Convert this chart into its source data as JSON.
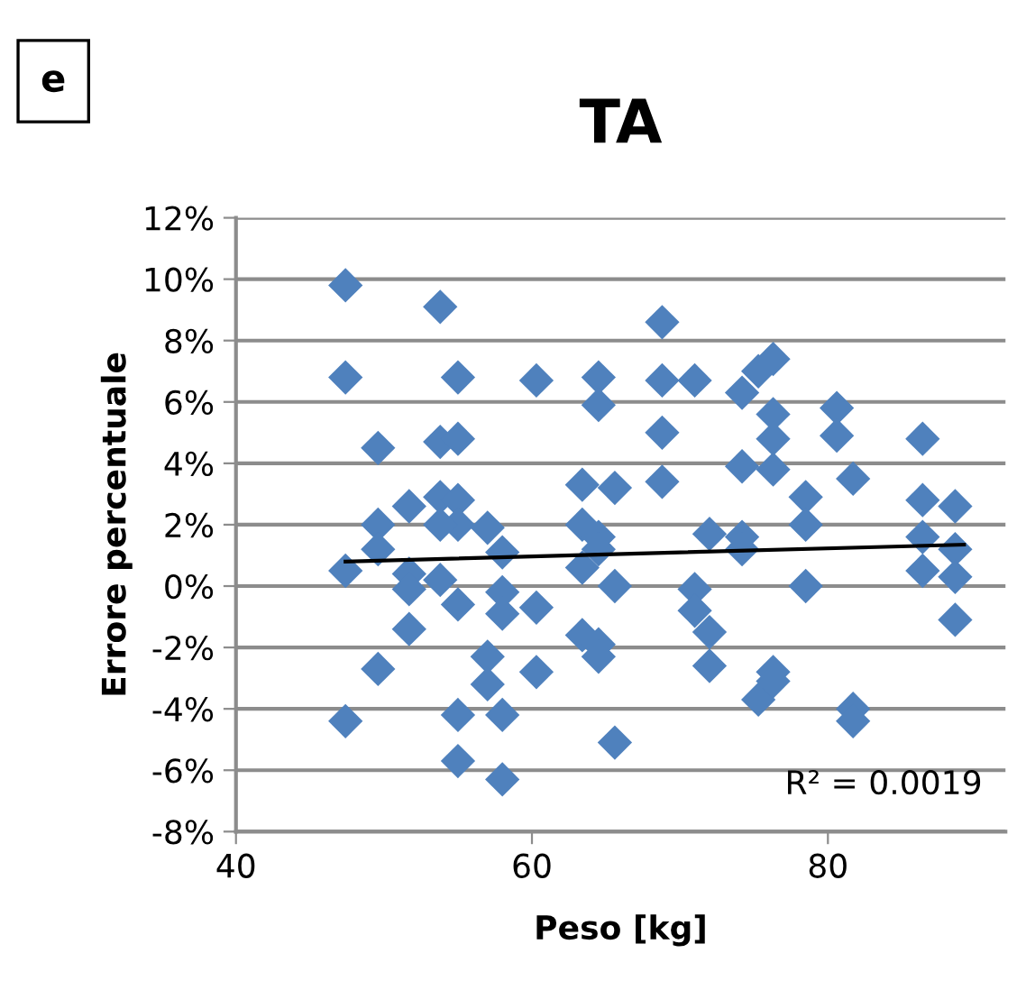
{
  "chart_data": {
    "type": "scatter",
    "title": "TA",
    "xlabel": "Peso [kg]",
    "ylabel": "Errore percentuale",
    "annotations": [
      "e",
      "R² = 0.0019"
    ],
    "xlim": [
      40,
      92
    ],
    "xticks": [
      40,
      60,
      80
    ],
    "ylim": [
      -8,
      12
    ],
    "yticks": [
      {
        "value": -8,
        "label": "-8%"
      },
      {
        "value": -6,
        "label": "-6%"
      },
      {
        "value": -4,
        "label": "-4%"
      },
      {
        "value": -2,
        "label": "-2%"
      },
      {
        "value": 0,
        "label": "0%"
      },
      {
        "value": 2,
        "label": "2%"
      },
      {
        "value": 4,
        "label": "4%"
      },
      {
        "value": 6,
        "label": "6%"
      },
      {
        "value": 8,
        "label": "8%"
      },
      {
        "value": 10,
        "label": "10%"
      },
      {
        "value": 12,
        "label": "12%"
      }
    ],
    "grid": "y",
    "legend": false,
    "series": [
      {
        "color": "#4f81bd",
        "marker": "diamond",
        "x": [
          47.4,
          47.4,
          47.4,
          47.4,
          49.6,
          49.6,
          49.6,
          49.6,
          51.7,
          51.7,
          51.7,
          51.7,
          53.8,
          53.8,
          55,
          55,
          53.8,
          55,
          55,
          53.8,
          53.8,
          55,
          55,
          55,
          57,
          57,
          57,
          58,
          58,
          58,
          58,
          58,
          60.3,
          60.3,
          60.3,
          63.4,
          63.4,
          63.4,
          64.5,
          64.5,
          64.5,
          64.5,
          63.4,
          64.5,
          64.5,
          65.6,
          65.6,
          65.6,
          68.8,
          68.8,
          68.8,
          68.8,
          71,
          71,
          71,
          72,
          72,
          72,
          74.2,
          74.2,
          74.2,
          74.2,
          75.3,
          76.3,
          76.3,
          76.3,
          76.3,
          75.3,
          76.3,
          76.3,
          78.5,
          78.5,
          78.5,
          80.6,
          80.6,
          81.7,
          81.7,
          81.7,
          86.4,
          86.4,
          86.4,
          86.4,
          88.6,
          88.6,
          88.6,
          88.6
        ],
        "values": [
          9.8,
          6.8,
          0.5,
          -4.4,
          4.5,
          2.0,
          1.2,
          -2.7,
          2.6,
          0.4,
          -0.1,
          -1.4,
          9.1,
          4.7,
          4.8,
          6.8,
          2.9,
          2.8,
          2.0,
          2.0,
          0.2,
          -0.6,
          -4.2,
          -5.7,
          1.9,
          -2.3,
          -3.2,
          1.1,
          -0.2,
          -0.9,
          -4.2,
          -6.3,
          6.7,
          -0.7,
          -2.8,
          3.3,
          2.0,
          0.6,
          6.8,
          5.9,
          1.6,
          1.2,
          -1.6,
          -1.9,
          -2.3,
          3.2,
          0.0,
          -5.1,
          8.6,
          6.7,
          5.0,
          3.4,
          6.7,
          -0.1,
          -0.8,
          1.7,
          -1.5,
          -2.6,
          6.3,
          3.9,
          1.6,
          1.2,
          7.0,
          7.4,
          5.6,
          4.8,
          3.8,
          -3.7,
          -2.8,
          -3.1,
          2.9,
          2.0,
          0.0,
          5.8,
          4.9,
          3.5,
          -4.0,
          -4.4,
          4.8,
          2.8,
          1.6,
          0.5,
          2.6,
          1.2,
          0.3,
          -1.1
        ]
      },
      {
        "color": "#000000",
        "type": "line",
        "marker": "none",
        "x": [
          47.4,
          89.2
        ],
        "values": [
          0.8,
          1.35
        ]
      }
    ]
  }
}
